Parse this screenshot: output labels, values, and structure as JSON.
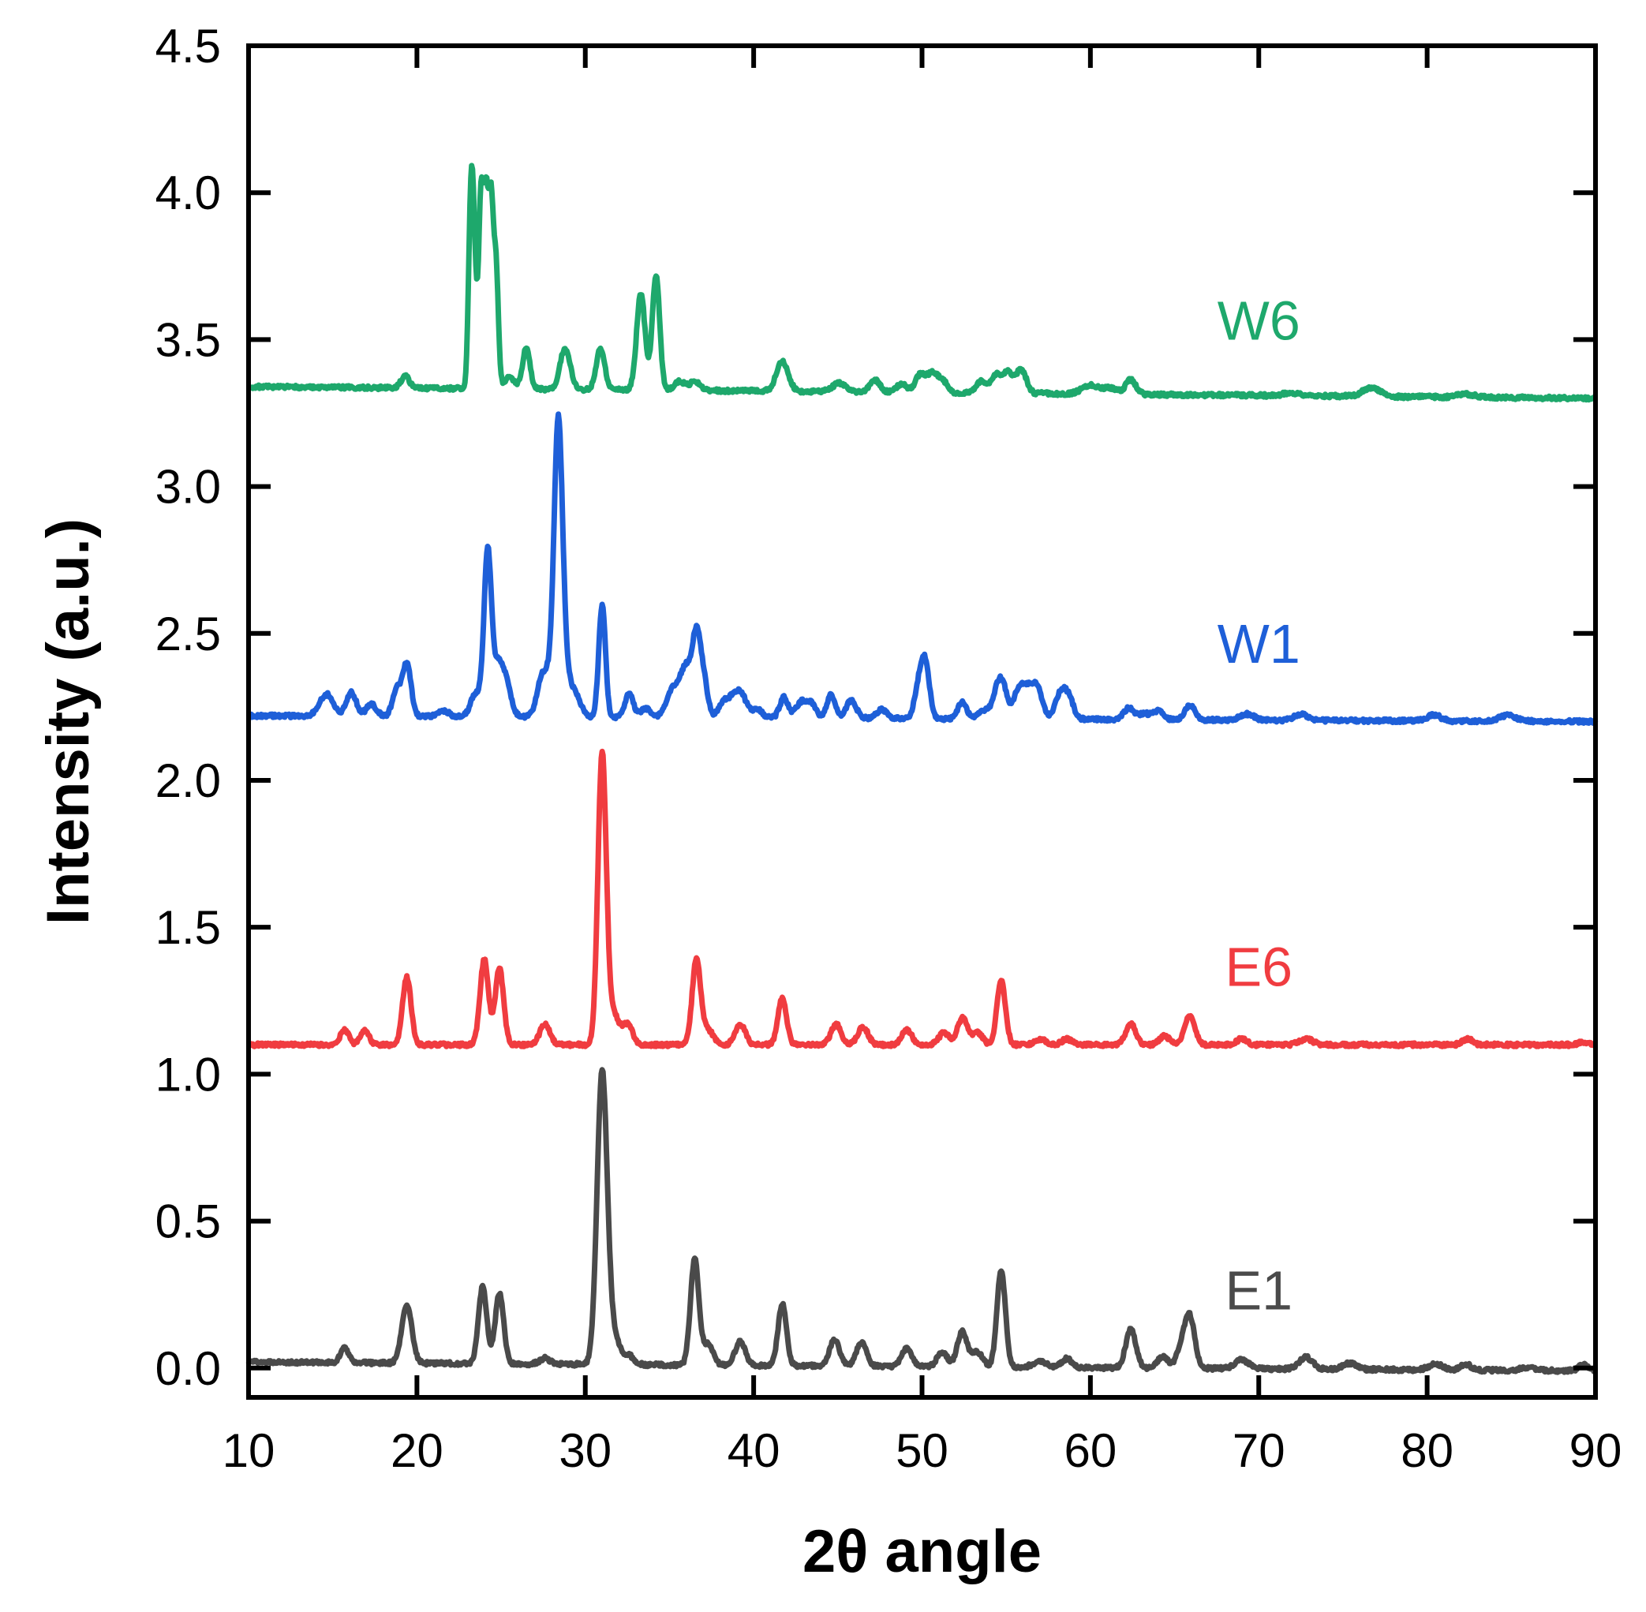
{
  "chart_data": {
    "type": "line",
    "title": "",
    "xlabel": "2θ angle",
    "ylabel": "Intensity (a.u.)",
    "xlim": [
      10,
      90
    ],
    "ylim": [
      -0.1,
      4.5
    ],
    "xticks": [
      "10",
      "20",
      "30",
      "40",
      "50",
      "60",
      "70",
      "80",
      "90"
    ],
    "yticks": [
      "0.0",
      "0.5",
      "1.0",
      "1.5",
      "2.0",
      "2.5",
      "3.0",
      "3.5",
      "4.0",
      "4.5"
    ],
    "grid": false,
    "legend": "inline labels",
    "series": [
      {
        "name": "E1",
        "color": "#4a4a4a",
        "baseline": 0.0,
        "drift": [
          0.02,
          -0.01
        ],
        "peaks": [
          [
            15.7,
            0.05,
            0.25
          ],
          [
            19.4,
            0.2,
            0.3
          ],
          [
            23.9,
            0.26,
            0.25
          ],
          [
            24.9,
            0.24,
            0.25
          ],
          [
            27.6,
            0.02,
            0.3
          ],
          [
            31.0,
            0.99,
            0.3
          ],
          [
            31.7,
            0.09,
            0.35
          ],
          [
            32.6,
            0.03,
            0.3
          ],
          [
            36.5,
            0.36,
            0.25
          ],
          [
            37.3,
            0.07,
            0.3
          ],
          [
            39.2,
            0.08,
            0.3
          ],
          [
            41.7,
            0.21,
            0.25
          ],
          [
            44.8,
            0.09,
            0.3
          ],
          [
            46.4,
            0.08,
            0.3
          ],
          [
            49.1,
            0.06,
            0.3
          ],
          [
            51.2,
            0.05,
            0.3
          ],
          [
            52.4,
            0.12,
            0.3
          ],
          [
            53.3,
            0.05,
            0.3
          ],
          [
            54.7,
            0.33,
            0.25
          ],
          [
            57.0,
            0.02,
            0.4
          ],
          [
            58.6,
            0.03,
            0.3
          ],
          [
            62.4,
            0.13,
            0.3
          ],
          [
            64.3,
            0.04,
            0.3
          ],
          [
            65.4,
            0.06,
            0.3
          ],
          [
            65.9,
            0.17,
            0.3
          ],
          [
            69.0,
            0.03,
            0.4
          ],
          [
            72.8,
            0.04,
            0.4
          ],
          [
            75.4,
            0.02,
            0.4
          ],
          [
            80.5,
            0.02,
            0.4
          ],
          [
            82.3,
            0.02,
            0.3
          ],
          [
            86.0,
            0.01,
            0.4
          ],
          [
            89.3,
            0.02,
            0.3
          ]
        ],
        "label": "E1",
        "label_at": [
          70.0,
          0.2
        ]
      },
      {
        "name": "E6",
        "color": "#f03c40",
        "baseline": 1.1,
        "drift": [
          0.0,
          0.0
        ],
        "peaks": [
          [
            15.7,
            0.05,
            0.25
          ],
          [
            16.9,
            0.05,
            0.25
          ],
          [
            19.4,
            0.23,
            0.25
          ],
          [
            24.0,
            0.29,
            0.25
          ],
          [
            24.9,
            0.26,
            0.25
          ],
          [
            27.6,
            0.07,
            0.3
          ],
          [
            31.0,
            0.99,
            0.25
          ],
          [
            31.7,
            0.1,
            0.3
          ],
          [
            32.5,
            0.07,
            0.3
          ],
          [
            36.6,
            0.29,
            0.25
          ],
          [
            37.3,
            0.05,
            0.3
          ],
          [
            39.2,
            0.07,
            0.3
          ],
          [
            41.7,
            0.16,
            0.25
          ],
          [
            44.9,
            0.07,
            0.3
          ],
          [
            46.5,
            0.06,
            0.3
          ],
          [
            49.1,
            0.05,
            0.3
          ],
          [
            51.3,
            0.04,
            0.3
          ],
          [
            52.4,
            0.09,
            0.3
          ],
          [
            53.3,
            0.04,
            0.3
          ],
          [
            54.7,
            0.22,
            0.25
          ],
          [
            57.0,
            0.02,
            0.3
          ],
          [
            58.6,
            0.02,
            0.3
          ],
          [
            62.4,
            0.07,
            0.3
          ],
          [
            64.4,
            0.03,
            0.3
          ],
          [
            65.9,
            0.1,
            0.3
          ],
          [
            69.0,
            0.02,
            0.3
          ],
          [
            72.8,
            0.02,
            0.4
          ],
          [
            82.4,
            0.02,
            0.3
          ],
          [
            89.3,
            0.01,
            0.3
          ]
        ],
        "label": "E6",
        "label_at": [
          70.0,
          1.3
        ]
      },
      {
        "name": "W1",
        "color": "#1e5fd8",
        "baseline": 2.22,
        "drift": [
          0.0,
          -0.02
        ],
        "peaks": [
          [
            14.3,
            0.04,
            0.3
          ],
          [
            14.8,
            0.06,
            0.3
          ],
          [
            16.1,
            0.08,
            0.3
          ],
          [
            17.3,
            0.04,
            0.3
          ],
          [
            18.8,
            0.09,
            0.25
          ],
          [
            19.4,
            0.18,
            0.25
          ],
          [
            21.6,
            0.02,
            0.3
          ],
          [
            23.5,
            0.08,
            0.3
          ],
          [
            24.2,
            0.55,
            0.22
          ],
          [
            24.8,
            0.16,
            0.3
          ],
          [
            25.3,
            0.1,
            0.3
          ],
          [
            27.4,
            0.12,
            0.3
          ],
          [
            27.9,
            0.1,
            0.3
          ],
          [
            28.4,
            0.97,
            0.25
          ],
          [
            28.9,
            0.12,
            0.3
          ],
          [
            29.5,
            0.06,
            0.3
          ],
          [
            31.0,
            0.38,
            0.2
          ],
          [
            32.6,
            0.08,
            0.25
          ],
          [
            33.6,
            0.03,
            0.3
          ],
          [
            34.9,
            0.04,
            0.3
          ],
          [
            35.3,
            0.07,
            0.3
          ],
          [
            35.8,
            0.1,
            0.3
          ],
          [
            36.2,
            0.12,
            0.3
          ],
          [
            36.6,
            0.22,
            0.22
          ],
          [
            37.0,
            0.14,
            0.25
          ],
          [
            38.2,
            0.05,
            0.3
          ],
          [
            38.8,
            0.06,
            0.3
          ],
          [
            39.3,
            0.07,
            0.3
          ],
          [
            40.2,
            0.03,
            0.3
          ],
          [
            41.8,
            0.07,
            0.25
          ],
          [
            42.8,
            0.05,
            0.3
          ],
          [
            43.4,
            0.05,
            0.3
          ],
          [
            44.6,
            0.08,
            0.25
          ],
          [
            45.8,
            0.06,
            0.3
          ],
          [
            47.6,
            0.03,
            0.3
          ],
          [
            49.8,
            0.1,
            0.25
          ],
          [
            50.2,
            0.18,
            0.25
          ],
          [
            52.4,
            0.06,
            0.25
          ],
          [
            53.7,
            0.03,
            0.3
          ],
          [
            54.4,
            0.08,
            0.25
          ],
          [
            54.8,
            0.11,
            0.25
          ],
          [
            55.6,
            0.06,
            0.3
          ],
          [
            56.0,
            0.08,
            0.3
          ],
          [
            56.5,
            0.07,
            0.3
          ],
          [
            56.9,
            0.08,
            0.3
          ],
          [
            58.2,
            0.08,
            0.3
          ],
          [
            58.7,
            0.07,
            0.3
          ],
          [
            62.3,
            0.04,
            0.3
          ],
          [
            63.2,
            0.02,
            0.3
          ],
          [
            64.0,
            0.03,
            0.3
          ],
          [
            65.9,
            0.05,
            0.3
          ],
          [
            69.3,
            0.02,
            0.4
          ],
          [
            72.5,
            0.02,
            0.4
          ],
          [
            80.4,
            0.02,
            0.4
          ],
          [
            84.8,
            0.02,
            0.5
          ]
        ],
        "label": "W1",
        "label_at": [
          70.0,
          2.4
        ]
      },
      {
        "name": "W6",
        "color": "#1ea86c",
        "baseline": 3.33,
        "drift": [
          0.01,
          -0.03
        ],
        "peaks": [
          [
            19.3,
            0.04,
            0.25
          ],
          [
            23.2,
            0.58,
            0.14
          ],
          [
            23.4,
            0.38,
            0.14
          ],
          [
            23.8,
            0.64,
            0.14
          ],
          [
            24.1,
            0.6,
            0.14
          ],
          [
            24.4,
            0.6,
            0.14
          ],
          [
            24.7,
            0.4,
            0.14
          ],
          [
            25.5,
            0.04,
            0.3
          ],
          [
            26.5,
            0.14,
            0.22
          ],
          [
            28.8,
            0.14,
            0.3
          ],
          [
            30.9,
            0.14,
            0.25
          ],
          [
            33.3,
            0.33,
            0.25
          ],
          [
            34.2,
            0.39,
            0.22
          ],
          [
            35.6,
            0.03,
            0.3
          ],
          [
            36.5,
            0.03,
            0.3
          ],
          [
            41.7,
            0.1,
            0.35
          ],
          [
            45.1,
            0.03,
            0.4
          ],
          [
            47.2,
            0.04,
            0.3
          ],
          [
            48.8,
            0.03,
            0.3
          ],
          [
            49.9,
            0.06,
            0.3
          ],
          [
            50.6,
            0.06,
            0.3
          ],
          [
            51.2,
            0.04,
            0.3
          ],
          [
            53.5,
            0.04,
            0.3
          ],
          [
            54.4,
            0.06,
            0.3
          ],
          [
            55.1,
            0.07,
            0.3
          ],
          [
            55.9,
            0.08,
            0.3
          ],
          [
            60.0,
            0.03,
            0.5
          ],
          [
            61.2,
            0.02,
            0.4
          ],
          [
            62.4,
            0.05,
            0.3
          ],
          [
            72.0,
            0.01,
            0.5
          ],
          [
            76.7,
            0.03,
            0.5
          ],
          [
            82.3,
            0.01,
            0.5
          ]
        ],
        "label": "W6",
        "label_at": [
          70.0,
          3.5
        ]
      }
    ]
  }
}
